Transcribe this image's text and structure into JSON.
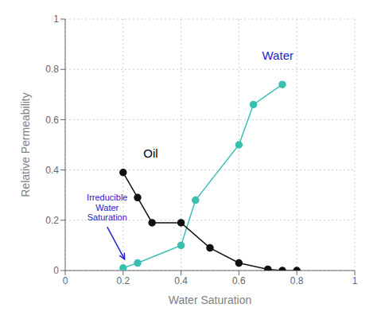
{
  "chart_data": {
    "type": "line",
    "x_label": "Water Saturation",
    "y_label": "Relative Permeability",
    "xlim": [
      0,
      1
    ],
    "ylim": [
      0,
      1
    ],
    "xticks": [
      0,
      0.2,
      0.4,
      0.6,
      0.8,
      1.0
    ],
    "yticks": [
      0,
      0.2,
      0.4,
      0.6,
      0.8,
      1.0
    ],
    "grid": true,
    "series": [
      {
        "color": "#3ABFB0",
        "marker": "circle",
        "x": [
          0.2,
          0.25,
          0.4,
          0.45,
          0.6,
          0.65,
          0.75
        ],
        "values": [
          0.01,
          0.03,
          0.1,
          0.28,
          0.5,
          0.66,
          0.74
        ]
      },
      {
        "color": "#111111",
        "marker": "circle",
        "x": [
          0.2,
          0.25,
          0.3,
          0.4,
          0.5,
          0.6,
          0.7,
          0.75,
          0.8
        ],
        "values": [
          0.39,
          0.29,
          0.19,
          0.19,
          0.09,
          0.03,
          0.005,
          0.0,
          0.0
        ]
      }
    ],
    "annotations": [
      {
        "text": "Oil",
        "x": 0.27,
        "y": 0.45,
        "color": "#000000"
      },
      {
        "text": "Water",
        "x": 0.68,
        "y": 0.84,
        "color": "#2222cc"
      },
      {
        "text": "Irreducible\nWater\nSaturation",
        "x": 0.145,
        "y": 0.31,
        "arrow_x": 0.205,
        "arrow_y": 0.045,
        "color": "#2222cc"
      }
    ]
  }
}
